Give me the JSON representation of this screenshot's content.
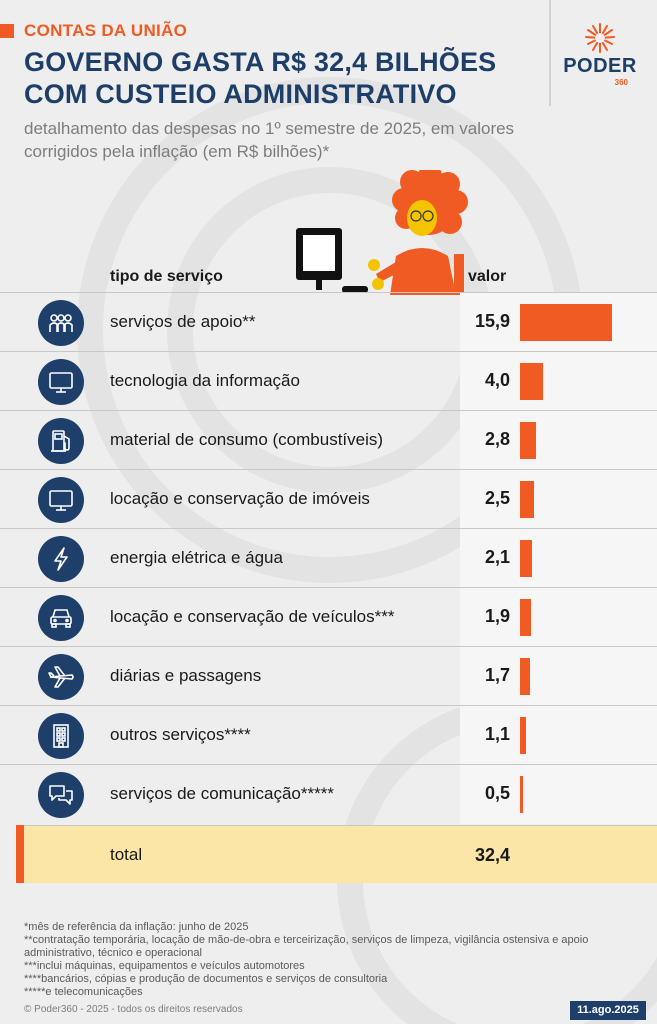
{
  "kicker": "CONTAS DA UNIÃO",
  "headline": "GOVERNO GASTA R$ 32,4 BILHÕES COM CUSTEIO ADMINISTRATIVO",
  "subtitle": "detalhamento das despesas no 1º semestre de 2025, em valores corrigidos pela inflação (em R$ bilhões)*",
  "logo": {
    "word": "PODER",
    "number": "360"
  },
  "colors": {
    "accent": "#f05a23",
    "navy": "#1f3f6b",
    "total_bg": "#fbe6a8"
  },
  "chart_data": {
    "type": "bar",
    "orientation": "horizontal",
    "column_headers": {
      "category": "tipo de serviço",
      "value": "valor"
    },
    "rows": [
      {
        "label": "serviços de apoio**",
        "value": 15.9,
        "display": "15,9",
        "icon": "people-icon"
      },
      {
        "label": "tecnologia da informação",
        "value": 4.0,
        "display": "4,0",
        "icon": "monitor-icon"
      },
      {
        "label": "material de consumo (combustíveis)",
        "value": 2.8,
        "display": "2,8",
        "icon": "fuel-pump-icon"
      },
      {
        "label": "locação e conservação de imóveis",
        "value": 2.5,
        "display": "2,5",
        "icon": "monitor-icon"
      },
      {
        "label": "energia elétrica e água",
        "value": 2.1,
        "display": "2,1",
        "icon": "lightning-icon"
      },
      {
        "label": "locação e conservação de veículos***",
        "value": 1.9,
        "display": "1,9",
        "icon": "car-icon"
      },
      {
        "label": "diárias e passagens",
        "value": 1.7,
        "display": "1,7",
        "icon": "airplane-icon"
      },
      {
        "label": "outros serviços****",
        "value": 1.1,
        "display": "1,1",
        "icon": "building-icon"
      },
      {
        "label": "serviços de comunicação*****",
        "value": 0.5,
        "display": "0,5",
        "icon": "chat-bubbles-icon"
      }
    ],
    "total": {
      "label": "total",
      "value": 32.4,
      "display": "32,4"
    }
  },
  "notes": [
    "*mês de referência da inflação: junho de 2025",
    "**contratação temporária, locação de mão-de-obra e terceirização, serviços de limpeza, vigilância ostensiva e apoio administrativo, técnico e operacional",
    "***inclui máquinas, equipamentos e veículos automotores",
    "****bancários, cópias e produção de documentos e serviços de consultoria",
    "*****e telecomunicações"
  ],
  "copyright": "© Poder360 - 2025 - todos os direitos reservados",
  "date": "11.ago.2025"
}
